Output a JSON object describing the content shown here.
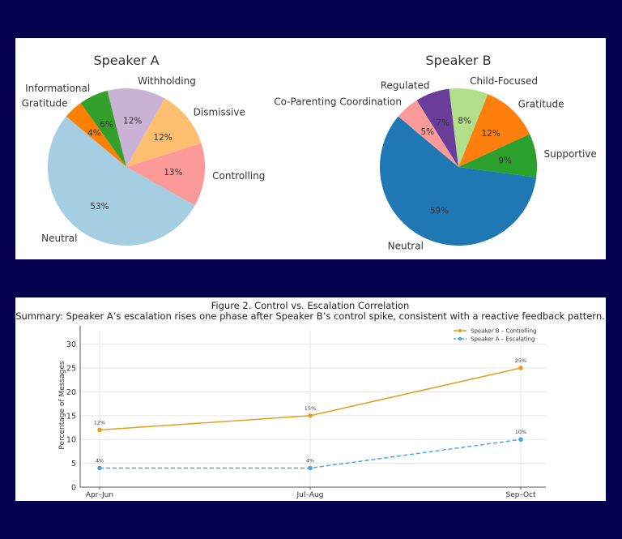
{
  "chart_data": [
    {
      "type": "pie",
      "title": "Speaker A",
      "start_angle_deg": 140,
      "direction": "counterclockwise",
      "slices": [
        {
          "label": "Neutral",
          "value": 53,
          "pct_label": "53%",
          "color": "#a6cee3"
        },
        {
          "label": "Controlling",
          "value": 13,
          "pct_label": "13%",
          "color": "#fb9a99"
        },
        {
          "label": "Dismissive",
          "value": 12,
          "pct_label": "12%",
          "color": "#fdbf6f"
        },
        {
          "label": "Withholding",
          "value": 12,
          "pct_label": "12%",
          "color": "#cab2d6"
        },
        {
          "label": "Informational",
          "value": 6,
          "pct_label": "6%",
          "color": "#33a02c"
        },
        {
          "label": "Gratitude",
          "value": 4,
          "pct_label": "4%",
          "color": "#ff7f00"
        }
      ]
    },
    {
      "type": "pie",
      "title": "Speaker B",
      "start_angle_deg": 140,
      "direction": "counterclockwise",
      "slices": [
        {
          "label": "Neutral",
          "value": 59,
          "pct_label": "59%",
          "color": "#1f77b4"
        },
        {
          "label": "Supportive",
          "value": 9,
          "pct_label": "9%",
          "color": "#2ca02c"
        },
        {
          "label": "Gratitude",
          "value": 12,
          "pct_label": "12%",
          "color": "#ff7f0e"
        },
        {
          "label": "Child-Focused",
          "value": 8,
          "pct_label": "8%",
          "color": "#b2df8a"
        },
        {
          "label": "Regulated",
          "value": 7,
          "pct_label": "7%",
          "color": "#6a3d9a"
        },
        {
          "label": "Co-Parenting Coordination",
          "value": 5,
          "pct_label": "5%",
          "color": "#fb9a99"
        }
      ]
    },
    {
      "type": "line",
      "title": "Figure 2. Control vs. Escalation Correlation",
      "subtitle": "Summary: Speaker A’s escalation rises one phase after Speaker B’s control spike, consistent with a reactive feedback pattern.",
      "xlabel": "",
      "ylabel": "Percentage of Messages",
      "categories": [
        "Apr–Jun",
        "Jul–Aug",
        "Sep–Oct"
      ],
      "ylim": [
        0,
        33
      ],
      "yticks": [
        0,
        5,
        10,
        15,
        20,
        25,
        30
      ],
      "grid": true,
      "legend_position": "top-right",
      "series": [
        {
          "name": "Speaker B – Controlling",
          "values": [
            12,
            15,
            25
          ],
          "labels": [
            "12%",
            "15%",
            "25%"
          ],
          "color": "#e0a020",
          "style": "solid"
        },
        {
          "name": "Speaker A – Escalating",
          "values": [
            4,
            4,
            10
          ],
          "labels": [
            "4%",
            "4%",
            "10%"
          ],
          "color": "#4aa8d8",
          "style": "dashed"
        }
      ]
    }
  ]
}
